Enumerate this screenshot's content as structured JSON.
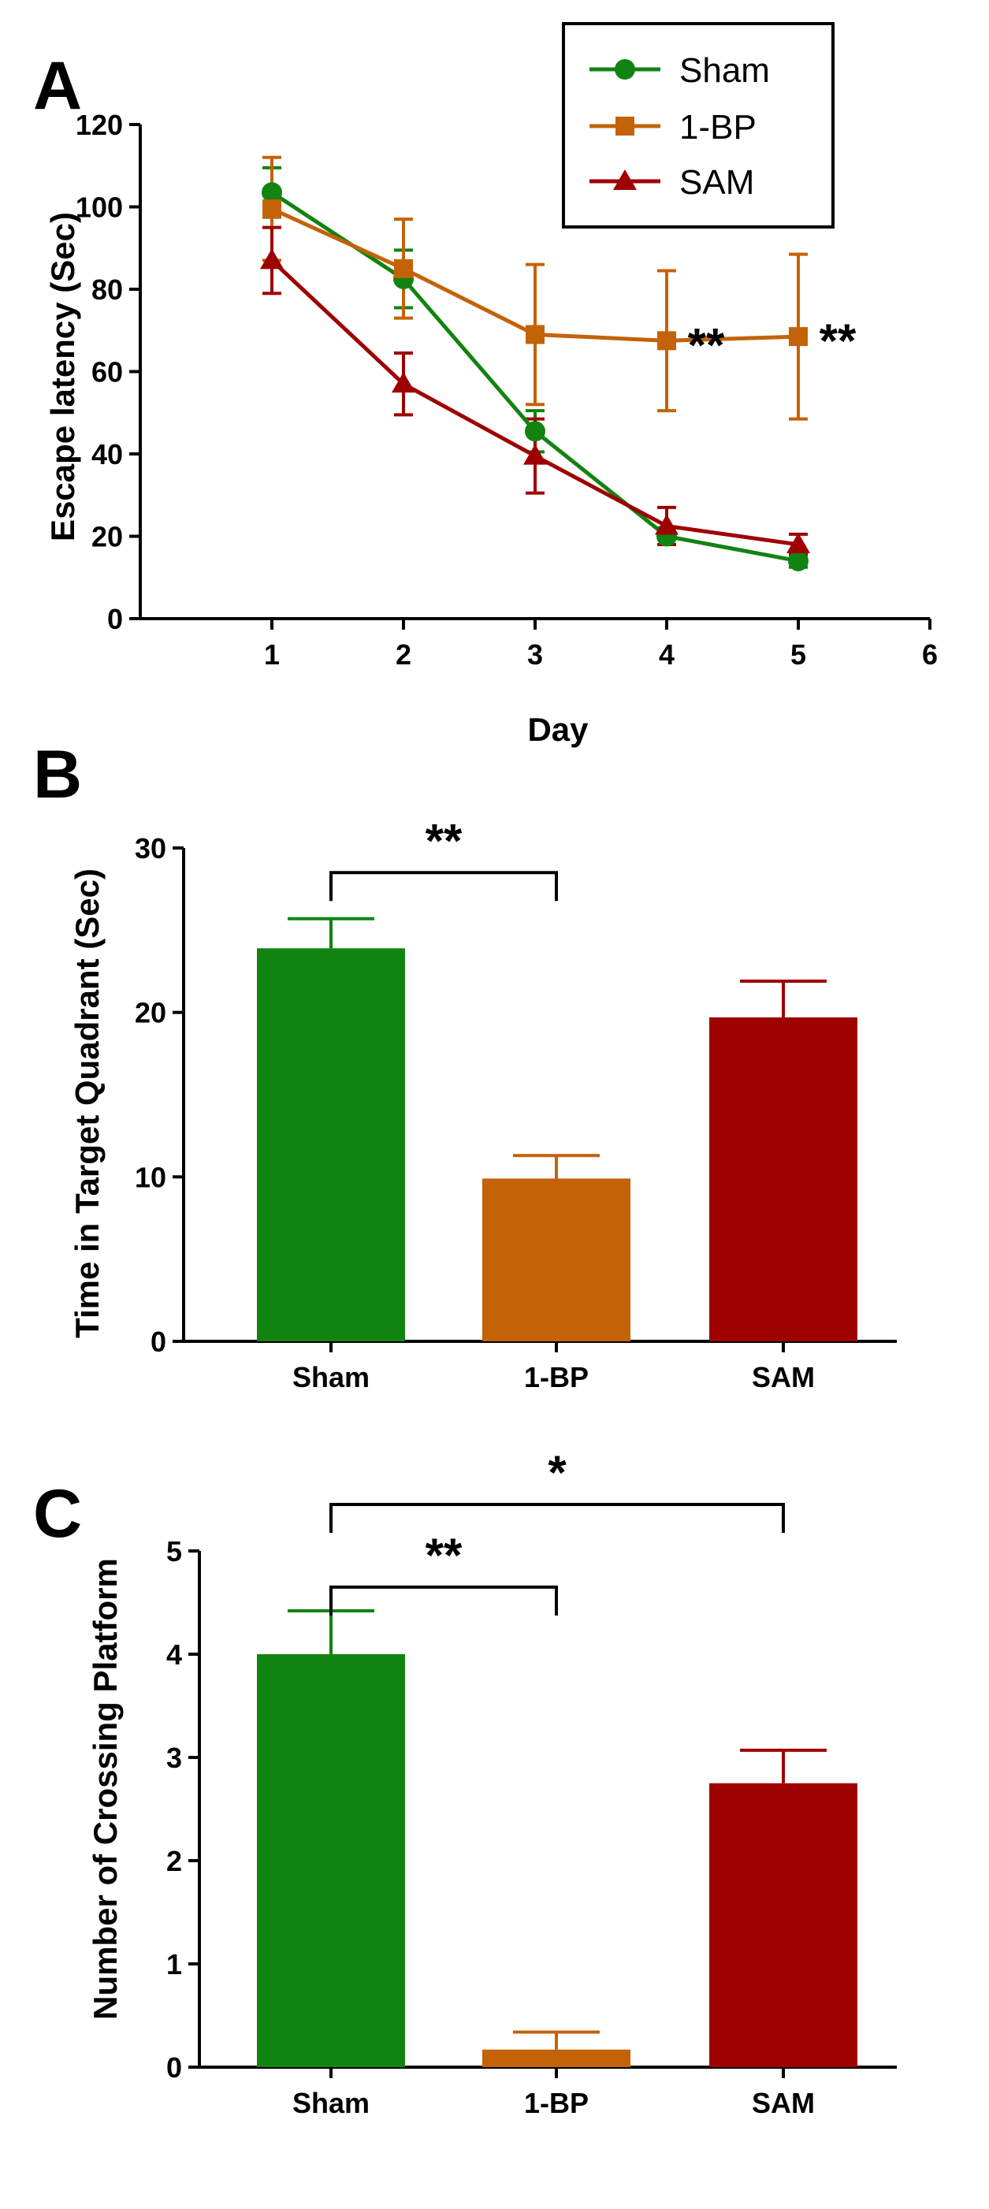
{
  "figure": {
    "panel_labels": [
      "A",
      "B",
      "C"
    ],
    "colors": {
      "sham": "#118311",
      "bp": "#C46207",
      "sam": "#9E0000",
      "axis": "#000000"
    }
  },
  "chart_data": [
    {
      "type": "line",
      "panel": "A",
      "title": "",
      "xlabel": "Day",
      "ylabel": "Escape latency (Sec)",
      "xlim": [
        0,
        6
      ],
      "ylim": [
        0,
        120
      ],
      "xticks": [
        "1",
        "2",
        "3",
        "4",
        "5",
        "6"
      ],
      "yticks": [
        "0",
        "20",
        "40",
        "60",
        "80",
        "100",
        "120"
      ],
      "legend_position": "top-right",
      "x": [
        1,
        2,
        3,
        4,
        5
      ],
      "series": [
        {
          "name": "Sham",
          "marker": "circle",
          "color": "#118311",
          "values": [
            103.5,
            82.5,
            45.5,
            20,
            14
          ],
          "errors": [
            6,
            7,
            5,
            2,
            1.5
          ]
        },
        {
          "name": "1-BP",
          "marker": "square",
          "color": "#C46207",
          "values": [
            99.5,
            85,
            69,
            67.5,
            68.5
          ],
          "errors": [
            12.5,
            12,
            17,
            17,
            20
          ]
        },
        {
          "name": "SAM",
          "marker": "triangle",
          "color": "#9E0000",
          "values": [
            87,
            57,
            39.5,
            22.5,
            18
          ],
          "errors": [
            8,
            7.5,
            9,
            4.5,
            2.5
          ]
        }
      ],
      "annotations": [
        {
          "x": 4,
          "y": 67.5,
          "text": "**"
        },
        {
          "x": 5,
          "y": 68.5,
          "text": "**"
        }
      ]
    },
    {
      "type": "bar",
      "panel": "B",
      "title": "",
      "xlabel": "",
      "ylabel": "Time in Target Quadrant (Sec)",
      "ylim": [
        0,
        30
      ],
      "yticks": [
        "0",
        "10",
        "20",
        "30"
      ],
      "categories": [
        "Sham",
        "1-BP",
        "SAM"
      ],
      "values": [
        23.9,
        9.9,
        19.7
      ],
      "errors": [
        1.8,
        1.4,
        2.2
      ],
      "colors": [
        "#118311",
        "#C46207",
        "#9E0000"
      ],
      "brackets": [
        {
          "from": 0,
          "to": 1,
          "y": 28.5,
          "text": "**"
        }
      ]
    },
    {
      "type": "bar",
      "panel": "C",
      "title": "",
      "xlabel": "",
      "ylabel": "Number of Crossing Platform",
      "ylim": [
        0,
        5
      ],
      "yticks": [
        "0",
        "1",
        "2",
        "3",
        "4",
        "5"
      ],
      "categories": [
        "Sham",
        "1-BP",
        "SAM"
      ],
      "values": [
        4.0,
        0.17,
        2.75
      ],
      "errors": [
        0.42,
        0.17,
        0.32
      ],
      "colors": [
        "#118311",
        "#C46207",
        "#9E0000"
      ],
      "brackets": [
        {
          "from": 0,
          "to": 1,
          "y": 4.65,
          "text": "**"
        },
        {
          "from": 0,
          "to": 2,
          "y": 5.45,
          "text": "*"
        }
      ]
    }
  ]
}
